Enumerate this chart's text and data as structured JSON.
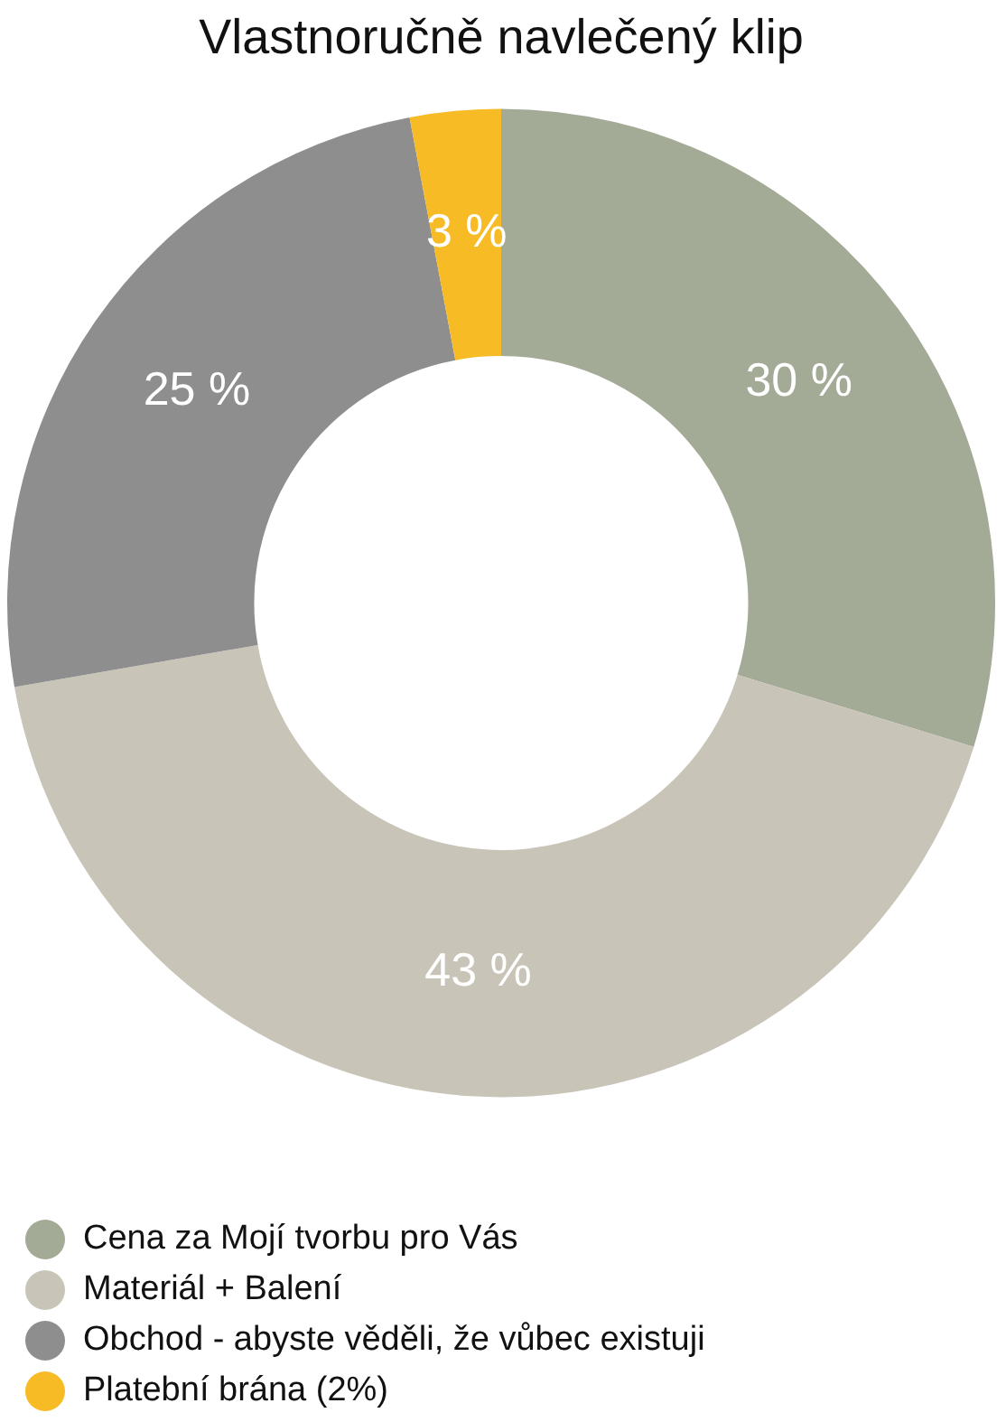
{
  "chart_data": {
    "type": "donut",
    "title": "Vlastnoručně navlečený klip",
    "categories": [
      "Cena za Mojí tvorbu pro Vás",
      "Materiál + Balení",
      "Obchod - abyste věděli, že vůbec existuji",
      "Platební brána (2%)"
    ],
    "values": [
      30,
      43,
      25,
      3
    ],
    "colors": [
      "#a3aa96",
      "#c9c4b8",
      "#8e8e8e",
      "#f6bb25"
    ],
    "value_labels": [
      "30 %",
      "43 %",
      "25 %",
      "3 %"
    ],
    "legend": "bottom"
  }
}
